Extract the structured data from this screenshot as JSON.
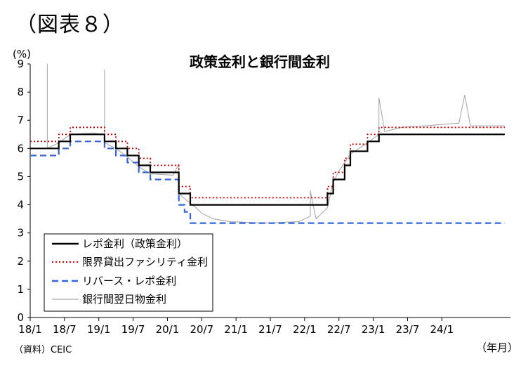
{
  "figure_label": "（図表８）",
  "source_note": "（資料）CEIC",
  "chart_data": {
    "type": "line",
    "title": "政策金利と銀行間金利",
    "ylabel": "(%)",
    "xlabel": "（年月）",
    "ylim": [
      0,
      9
    ],
    "yticks": [
      0,
      1,
      2,
      3,
      4,
      5,
      6,
      7,
      8,
      9
    ],
    "xlim": [
      "2018-01",
      "2024-12"
    ],
    "xticks": [
      "18/1",
      "18/7",
      "19/1",
      "19/7",
      "20/1",
      "20/7",
      "21/1",
      "21/7",
      "22/1",
      "22/7",
      "23/1",
      "23/7",
      "24/1"
    ],
    "legend_position": "bottom-left",
    "grid": false,
    "series": [
      {
        "name": "レポ金利（政策金利）",
        "color": "#000000",
        "style": "solid",
        "points": [
          [
            "2018-01",
            6.0
          ],
          [
            "2018-05",
            6.0
          ],
          [
            "2018-06",
            6.25
          ],
          [
            "2018-08",
            6.5
          ],
          [
            "2019-02",
            6.5
          ],
          [
            "2019-02",
            6.25
          ],
          [
            "2019-04",
            6.0
          ],
          [
            "2019-06",
            5.75
          ],
          [
            "2019-08",
            5.4
          ],
          [
            "2019-10",
            5.15
          ],
          [
            "2020-03",
            5.15
          ],
          [
            "2020-03",
            4.4
          ],
          [
            "2020-05",
            4.0
          ],
          [
            "2022-05",
            4.0
          ],
          [
            "2022-05",
            4.4
          ],
          [
            "2022-06",
            4.9
          ],
          [
            "2022-08",
            5.4
          ],
          [
            "2022-09",
            5.9
          ],
          [
            "2022-12",
            6.25
          ],
          [
            "2023-02",
            6.5
          ],
          [
            "2024-12",
            6.5
          ]
        ]
      },
      {
        "name": "限界貸出ファシリティ金利",
        "color": "#cc0000",
        "style": "dotted",
        "points": [
          [
            "2018-01",
            6.25
          ],
          [
            "2018-05",
            6.25
          ],
          [
            "2018-06",
            6.5
          ],
          [
            "2018-08",
            6.75
          ],
          [
            "2019-02",
            6.75
          ],
          [
            "2019-02",
            6.5
          ],
          [
            "2019-04",
            6.25
          ],
          [
            "2019-06",
            6.0
          ],
          [
            "2019-08",
            5.65
          ],
          [
            "2019-10",
            5.4
          ],
          [
            "2020-03",
            5.4
          ],
          [
            "2020-03",
            4.65
          ],
          [
            "2020-05",
            4.25
          ],
          [
            "2022-05",
            4.25
          ],
          [
            "2022-05",
            4.65
          ],
          [
            "2022-06",
            5.15
          ],
          [
            "2022-08",
            5.65
          ],
          [
            "2022-09",
            6.15
          ],
          [
            "2022-12",
            6.5
          ],
          [
            "2023-02",
            6.75
          ],
          [
            "2024-12",
            6.75
          ]
        ]
      },
      {
        "name": "リバース・レポ金利",
        "color": "#3366dd",
        "style": "dashed",
        "points": [
          [
            "2018-01",
            5.75
          ],
          [
            "2018-05",
            5.75
          ],
          [
            "2018-06",
            6.0
          ],
          [
            "2018-08",
            6.25
          ],
          [
            "2019-02",
            6.25
          ],
          [
            "2019-02",
            6.0
          ],
          [
            "2019-04",
            5.75
          ],
          [
            "2019-06",
            5.5
          ],
          [
            "2019-08",
            5.15
          ],
          [
            "2019-10",
            4.9
          ],
          [
            "2020-03",
            4.9
          ],
          [
            "2020-03",
            4.0
          ],
          [
            "2020-04",
            3.75
          ],
          [
            "2020-05",
            3.35
          ],
          [
            "2024-12",
            3.35
          ]
        ]
      },
      {
        "name": "銀行間翌日物金利",
        "color": "#aaaaaa",
        "style": "thin",
        "points": [
          [
            "2018-01",
            6.0
          ],
          [
            "2018-04",
            6.0
          ],
          [
            "2018-04",
            9.0
          ],
          [
            "2018-04",
            6.0
          ],
          [
            "2018-06",
            6.2
          ],
          [
            "2018-08",
            6.5
          ],
          [
            "2018-12",
            6.55
          ],
          [
            "2019-02",
            6.5
          ],
          [
            "2019-02",
            8.8
          ],
          [
            "2019-02",
            6.2
          ],
          [
            "2019-04",
            6.0
          ],
          [
            "2019-06",
            5.7
          ],
          [
            "2019-08",
            5.35
          ],
          [
            "2019-10",
            5.1
          ],
          [
            "2020-02",
            5.05
          ],
          [
            "2020-03",
            5.45
          ],
          [
            "2020-03",
            4.4
          ],
          [
            "2020-05",
            4.05
          ],
          [
            "2020-06",
            3.9
          ],
          [
            "2020-07",
            3.7
          ],
          [
            "2020-09",
            3.5
          ],
          [
            "2020-12",
            3.4
          ],
          [
            "2021-06",
            3.35
          ],
          [
            "2021-12",
            3.4
          ],
          [
            "2022-02",
            3.6
          ],
          [
            "2022-02",
            4.5
          ],
          [
            "2022-03",
            3.5
          ],
          [
            "2022-05",
            3.9
          ],
          [
            "2022-06",
            4.8
          ],
          [
            "2022-07",
            5.2
          ],
          [
            "2022-09",
            5.8
          ],
          [
            "2022-12",
            6.2
          ],
          [
            "2023-02",
            6.5
          ],
          [
            "2023-02",
            7.8
          ],
          [
            "2023-03",
            6.6
          ],
          [
            "2023-06",
            6.75
          ],
          [
            "2023-10",
            6.8
          ],
          [
            "2024-01",
            6.85
          ],
          [
            "2024-04",
            6.9
          ],
          [
            "2024-05",
            7.9
          ],
          [
            "2024-06",
            6.8
          ],
          [
            "2024-12",
            6.8
          ]
        ]
      }
    ]
  }
}
